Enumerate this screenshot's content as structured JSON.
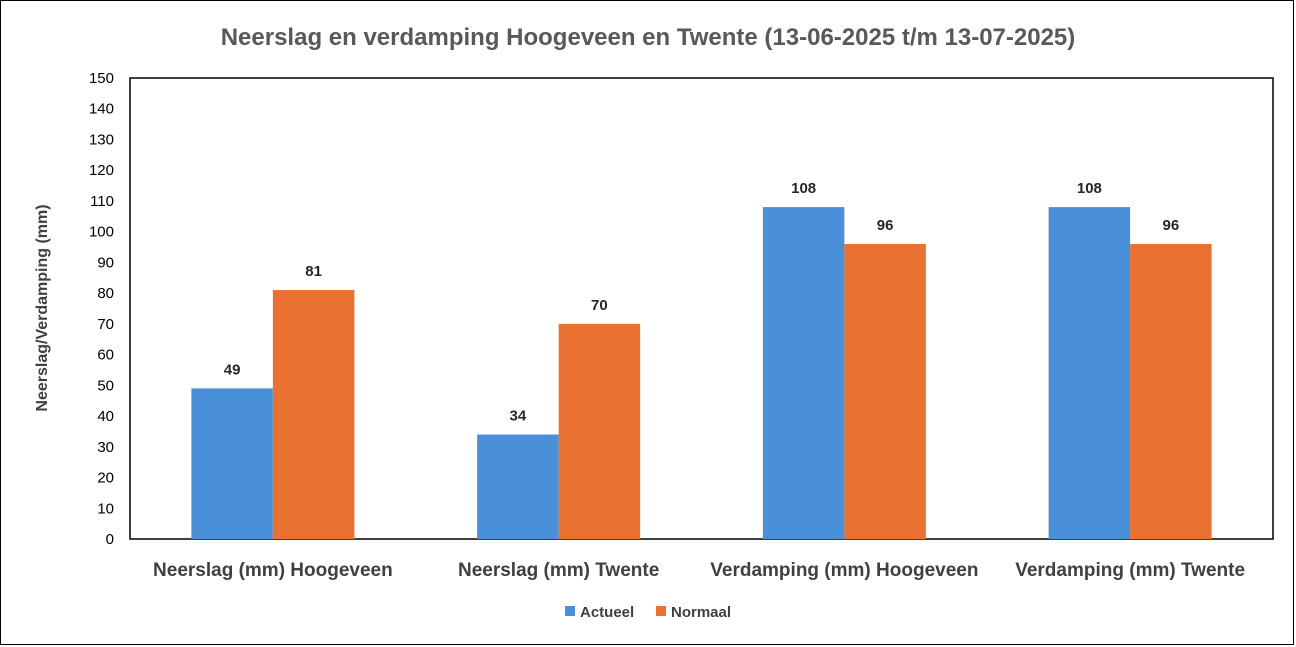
{
  "chart_data": {
    "type": "bar",
    "title": "Neerslag en verdamping Hoogeveen en Twente (13-06-2025 t/m 13-07-2025)",
    "ylabel": "Neerslag/Verdamping (mm)",
    "xlabel": "",
    "ylim": [
      0,
      150
    ],
    "ytick_step": 10,
    "grid": false,
    "legend_position": "bottom",
    "categories": [
      "Neerslag (mm) Hoogeveen",
      "Neerslag (mm) Twente",
      "Verdamping (mm) Hoogeveen",
      "Verdamping (mm) Twente"
    ],
    "series": [
      {
        "name": "Actueel",
        "color": "#4a90d9",
        "values": [
          49,
          34,
          108,
          108
        ]
      },
      {
        "name": "Normaal",
        "color": "#e97132",
        "values": [
          81,
          70,
          96,
          96
        ]
      }
    ]
  }
}
